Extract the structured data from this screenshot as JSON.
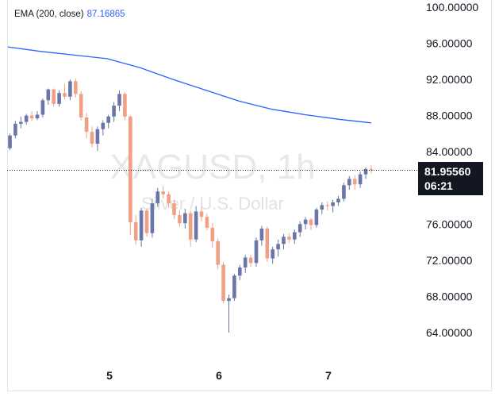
{
  "legend": {
    "label": "EMA (200, close)",
    "value": "87.16865",
    "color": "#2962ff"
  },
  "watermark": {
    "title": "XAGUSD, 1h",
    "subtitle": "Silver / U.S. Dollar"
  },
  "price_tag": {
    "price": "81.95560",
    "countdown": "06:21"
  },
  "colors": {
    "up": "#6a75a8",
    "down": "#f0a184",
    "ema": "#2962ff"
  },
  "chart_data": {
    "type": "candlestick",
    "symbol": "XAGUSD",
    "timeframe": "1h",
    "y_axis_labels": [
      "100.00000",
      "96.00000",
      "92.00000",
      "88.00000",
      "84.00000",
      "80.00000",
      "76.00000",
      "72.00000",
      "68.00000",
      "64.00000"
    ],
    "x_axis_labels": [
      "5",
      "6",
      "7"
    ],
    "ylim": [
      61.5,
      100.5
    ],
    "current_price": 81.9556,
    "ema_200_value": 87.16865,
    "candles": [
      [
        84.4,
        86.0,
        84.2,
        85.8
      ],
      [
        85.8,
        87.4,
        85.5,
        87.1
      ],
      [
        87.1,
        87.9,
        86.6,
        87.3
      ],
      [
        87.3,
        88.2,
        87.0,
        88.0
      ],
      [
        88.0,
        88.5,
        87.4,
        87.7
      ],
      [
        87.7,
        88.5,
        87.5,
        88.1
      ],
      [
        88.1,
        89.9,
        87.8,
        89.7
      ],
      [
        89.7,
        91.0,
        89.2,
        90.9
      ],
      [
        90.9,
        91.0,
        89.0,
        89.3
      ],
      [
        89.3,
        90.8,
        89.0,
        90.5
      ],
      [
        90.5,
        91.5,
        89.8,
        90.1
      ],
      [
        90.1,
        92.0,
        89.7,
        91.8
      ],
      [
        91.8,
        92.1,
        90.0,
        90.4
      ],
      [
        90.4,
        90.7,
        87.5,
        87.8
      ],
      [
        87.8,
        88.3,
        85.5,
        86.2
      ],
      [
        86.2,
        86.8,
        84.5,
        84.9
      ],
      [
        84.9,
        86.8,
        84.1,
        86.5
      ],
      [
        86.5,
        87.5,
        85.8,
        87.2
      ],
      [
        87.2,
        88.1,
        86.6,
        87.9
      ],
      [
        87.9,
        89.5,
        87.3,
        89.1
      ],
      [
        89.1,
        90.8,
        88.5,
        90.4
      ],
      [
        90.4,
        90.6,
        87.5,
        87.9
      ],
      [
        87.9,
        88.0,
        74.8,
        76.2
      ],
      [
        76.2,
        77.0,
        73.7,
        74.2
      ],
      [
        74.2,
        77.8,
        73.5,
        77.5
      ],
      [
        77.5,
        77.7,
        74.6,
        75.0
      ],
      [
        75.0,
        78.8,
        74.5,
        78.3
      ],
      [
        78.3,
        80.0,
        77.9,
        79.6
      ],
      [
        79.6,
        80.2,
        78.8,
        79.3
      ],
      [
        79.3,
        79.6,
        77.8,
        78.3
      ],
      [
        78.3,
        78.7,
        76.6,
        77.0
      ],
      [
        77.0,
        77.5,
        75.7,
        76.1
      ],
      [
        76.1,
        77.7,
        75.5,
        77.2
      ],
      [
        77.2,
        77.5,
        73.5,
        74.3
      ],
      [
        74.3,
        78.0,
        74.0,
        77.4
      ],
      [
        77.4,
        77.9,
        76.3,
        76.8
      ],
      [
        76.8,
        77.2,
        75.3,
        75.6
      ],
      [
        75.6,
        76.1,
        73.4,
        74.1
      ],
      [
        74.1,
        74.4,
        71.0,
        71.5
      ],
      [
        71.5,
        71.8,
        67.2,
        67.5
      ],
      [
        67.5,
        68.2,
        64.0,
        67.8
      ],
      [
        67.8,
        70.5,
        67.5,
        70.3
      ],
      [
        70.3,
        71.5,
        69.8,
        71.2
      ],
      [
        71.2,
        72.6,
        70.6,
        72.3
      ],
      [
        72.3,
        72.6,
        71.3,
        71.7
      ],
      [
        71.7,
        74.5,
        71.3,
        74.2
      ],
      [
        74.2,
        75.8,
        73.6,
        75.5
      ],
      [
        75.5,
        75.7,
        71.8,
        72.2
      ],
      [
        72.2,
        73.5,
        71.6,
        73.2
      ],
      [
        73.2,
        74.3,
        72.4,
        73.8
      ],
      [
        73.8,
        74.9,
        73.2,
        74.6
      ],
      [
        74.6,
        75.0,
        73.9,
        74.3
      ],
      [
        74.3,
        75.4,
        73.8,
        75.1
      ],
      [
        75.1,
        76.3,
        74.6,
        76.0
      ],
      [
        76.0,
        76.8,
        75.4,
        76.5
      ],
      [
        76.5,
        76.7,
        75.3,
        75.9
      ],
      [
        75.9,
        77.8,
        75.6,
        77.6
      ],
      [
        77.6,
        78.4,
        77.1,
        78.1
      ],
      [
        78.1,
        78.5,
        77.5,
        78.0
      ],
      [
        78.0,
        78.7,
        77.3,
        78.4
      ],
      [
        78.4,
        79.1,
        78.0,
        78.8
      ],
      [
        78.8,
        80.6,
        78.5,
        80.3
      ],
      [
        80.3,
        81.3,
        79.8,
        81.0
      ],
      [
        81.0,
        81.4,
        79.8,
        80.4
      ],
      [
        80.4,
        81.8,
        80.0,
        81.5
      ],
      [
        81.5,
        82.3,
        81.0,
        82.1
      ],
      [
        82.1,
        82.5,
        81.6,
        81.96
      ]
    ],
    "ema": [
      95.6,
      95.1,
      94.7,
      94.3,
      93.3,
      92.0,
      90.8,
      89.6,
      88.7,
      88.1,
      87.6,
      87.2
    ]
  }
}
